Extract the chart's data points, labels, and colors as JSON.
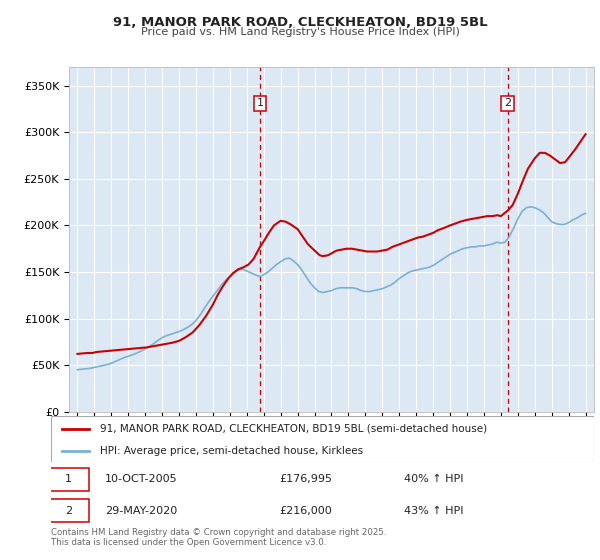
{
  "title_line1": "91, MANOR PARK ROAD, CLECKHEATON, BD19 5BL",
  "title_line2": "Price paid vs. HM Land Registry's House Price Index (HPI)",
  "ylabel_ticks": [
    "£0",
    "£50K",
    "£100K",
    "£150K",
    "£200K",
    "£250K",
    "£300K",
    "£350K"
  ],
  "ytick_values": [
    0,
    50000,
    100000,
    150000,
    200000,
    250000,
    300000,
    350000
  ],
  "ylim": [
    0,
    370000
  ],
  "xlim_start": 1994.5,
  "xlim_end": 2025.5,
  "plot_bg_color": "#dce9f5",
  "grid_color": "#ffffff",
  "red_line_color": "#cc0000",
  "blue_line_color": "#7ab0d4",
  "marker1_x": 2005.78,
  "marker1_y": 176995,
  "marker1_label": "1",
  "marker2_x": 2020.41,
  "marker2_y": 216000,
  "marker2_label": "2",
  "dashed_line_color": "#cc0000",
  "legend_label_red": "91, MANOR PARK ROAD, CLECKHEATON, BD19 5BL (semi-detached house)",
  "legend_label_blue": "HPI: Average price, semi-detached house, Kirklees",
  "annotation1_date": "10-OCT-2005",
  "annotation1_price": "£176,995",
  "annotation1_hpi": "40% ↑ HPI",
  "annotation2_date": "29-MAY-2020",
  "annotation2_price": "£216,000",
  "annotation2_hpi": "43% ↑ HPI",
  "footer_text": "Contains HM Land Registry data © Crown copyright and database right 2025.\nThis data is licensed under the Open Government Licence v3.0.",
  "hpi_years": [
    1995,
    1995.25,
    1995.5,
    1995.75,
    1996,
    1996.25,
    1996.5,
    1996.75,
    1997,
    1997.25,
    1997.5,
    1997.75,
    1998,
    1998.25,
    1998.5,
    1998.75,
    1999,
    1999.25,
    1999.5,
    1999.75,
    2000,
    2000.25,
    2000.5,
    2000.75,
    2001,
    2001.25,
    2001.5,
    2001.75,
    2002,
    2002.25,
    2002.5,
    2002.75,
    2003,
    2003.25,
    2003.5,
    2003.75,
    2004,
    2004.25,
    2004.5,
    2004.75,
    2005,
    2005.25,
    2005.5,
    2005.75,
    2006,
    2006.25,
    2006.5,
    2006.75,
    2007,
    2007.25,
    2007.5,
    2007.75,
    2008,
    2008.25,
    2008.5,
    2008.75,
    2009,
    2009.25,
    2009.5,
    2009.75,
    2010,
    2010.25,
    2010.5,
    2010.75,
    2011,
    2011.25,
    2011.5,
    2011.75,
    2012,
    2012.25,
    2012.5,
    2012.75,
    2013,
    2013.25,
    2013.5,
    2013.75,
    2014,
    2014.25,
    2014.5,
    2014.75,
    2015,
    2015.25,
    2015.5,
    2015.75,
    2016,
    2016.25,
    2016.5,
    2016.75,
    2017,
    2017.25,
    2017.5,
    2017.75,
    2018,
    2018.25,
    2018.5,
    2018.75,
    2019,
    2019.25,
    2019.5,
    2019.75,
    2020,
    2020.25,
    2020.5,
    2020.75,
    2021,
    2021.25,
    2021.5,
    2021.75,
    2022,
    2022.25,
    2022.5,
    2022.75,
    2023,
    2023.25,
    2023.5,
    2023.75,
    2024,
    2024.25,
    2024.5,
    2024.75,
    2025
  ],
  "hpi_values": [
    45000,
    45500,
    46000,
    46500,
    47500,
    48500,
    49500,
    50500,
    52000,
    54000,
    56000,
    58000,
    59500,
    61000,
    63000,
    65000,
    67500,
    70000,
    73000,
    76500,
    79500,
    81500,
    83000,
    84500,
    86000,
    88000,
    90500,
    93500,
    98000,
    104000,
    111000,
    118000,
    124000,
    130000,
    136000,
    141000,
    145000,
    149000,
    152000,
    153000,
    151000,
    149000,
    147000,
    145000,
    147000,
    150000,
    154000,
    158000,
    161000,
    164000,
    165000,
    162000,
    158000,
    152000,
    145000,
    138000,
    133000,
    129000,
    128000,
    129000,
    130000,
    132000,
    133000,
    133000,
    133000,
    133000,
    132000,
    130000,
    129000,
    129000,
    130000,
    131000,
    132000,
    134000,
    136000,
    139000,
    143000,
    146000,
    149000,
    151000,
    152000,
    153000,
    154000,
    155000,
    157000,
    160000,
    163000,
    166000,
    169000,
    171000,
    173000,
    175000,
    176000,
    177000,
    177000,
    178000,
    178000,
    179000,
    180000,
    182000,
    181000,
    182000,
    188000,
    197000,
    207000,
    215000,
    219000,
    220000,
    219000,
    217000,
    214000,
    209000,
    204000,
    202000,
    201000,
    201000,
    203000,
    206000,
    208000,
    211000,
    213000
  ],
  "red_years": [
    1995.0,
    1995.3,
    1995.6,
    1995.9,
    1996.1,
    1996.4,
    1996.7,
    1997.0,
    1997.3,
    1997.6,
    1997.9,
    1998.2,
    1998.5,
    1998.8,
    1999.1,
    1999.4,
    1999.7,
    2000.0,
    2000.3,
    2000.6,
    2001.0,
    2001.4,
    2001.8,
    2002.2,
    2002.6,
    2003.0,
    2003.3,
    2003.6,
    2003.9,
    2004.2,
    2004.5,
    2004.8,
    2005.1,
    2005.4,
    2005.78,
    2006.0,
    2006.3,
    2006.6,
    2007.0,
    2007.3,
    2007.6,
    2008.0,
    2008.3,
    2008.6,
    2009.0,
    2009.3,
    2009.5,
    2009.8,
    2010.0,
    2010.3,
    2010.6,
    2010.9,
    2011.2,
    2011.5,
    2011.8,
    2012.1,
    2012.4,
    2012.7,
    2013.0,
    2013.3,
    2013.6,
    2013.9,
    2014.2,
    2014.5,
    2014.8,
    2015.1,
    2015.4,
    2015.7,
    2016.0,
    2016.3,
    2016.6,
    2017.0,
    2017.3,
    2017.6,
    2018.0,
    2018.3,
    2018.6,
    2018.9,
    2019.2,
    2019.5,
    2019.8,
    2020.0,
    2020.41,
    2020.7,
    2021.0,
    2021.3,
    2021.6,
    2022.0,
    2022.3,
    2022.6,
    2022.9,
    2023.2,
    2023.5,
    2023.8,
    2024.1,
    2024.4,
    2024.7,
    2025.0
  ],
  "red_values": [
    62000,
    62500,
    63000,
    63000,
    64000,
    64500,
    65000,
    65500,
    66000,
    66500,
    67000,
    67500,
    68000,
    68500,
    69000,
    70000,
    71000,
    72000,
    73000,
    74000,
    76000,
    80000,
    85000,
    93000,
    103000,
    115000,
    126000,
    135000,
    143000,
    149000,
    153000,
    155000,
    158000,
    164000,
    176995,
    183000,
    192000,
    200000,
    205000,
    204000,
    201000,
    196000,
    188000,
    180000,
    173000,
    168000,
    167000,
    168000,
    170000,
    173000,
    174000,
    175000,
    175000,
    174000,
    173000,
    172000,
    172000,
    172000,
    173000,
    174000,
    177000,
    179000,
    181000,
    183000,
    185000,
    187000,
    188000,
    190000,
    192000,
    195000,
    197000,
    200000,
    202000,
    204000,
    206000,
    207000,
    208000,
    209000,
    210000,
    210000,
    211000,
    210000,
    216000,
    222000,
    234000,
    248000,
    261000,
    272000,
    278000,
    278000,
    275000,
    271000,
    267000,
    268000,
    275000,
    282000,
    290000,
    298000
  ]
}
